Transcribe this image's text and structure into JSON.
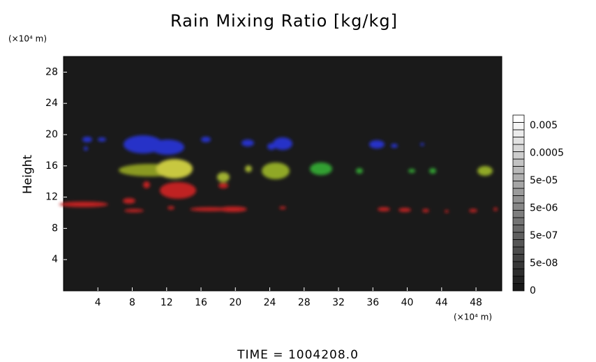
{
  "chart_data": {
    "type": "field",
    "title": "Rain Mixing Ratio [kg/kg]",
    "y_unit_label": "(×10⁴ m)",
    "x_unit_label": "(×10⁴ m)",
    "ylabel": "Height",
    "footer": "TIME = 1004208.0",
    "xlim": [
      0,
      51
    ],
    "xticks": [
      4,
      8,
      12,
      16,
      20,
      24,
      28,
      32,
      36,
      40,
      44,
      48
    ],
    "ylim": [
      0,
      30
    ],
    "yticks": [
      4,
      8,
      12,
      16,
      20,
      24,
      28
    ],
    "colorbar_labels": [
      "0.005",
      "0.0005",
      "5e-05",
      "5e-06",
      "5e-07",
      "5e-08",
      "0"
    ]
  }
}
